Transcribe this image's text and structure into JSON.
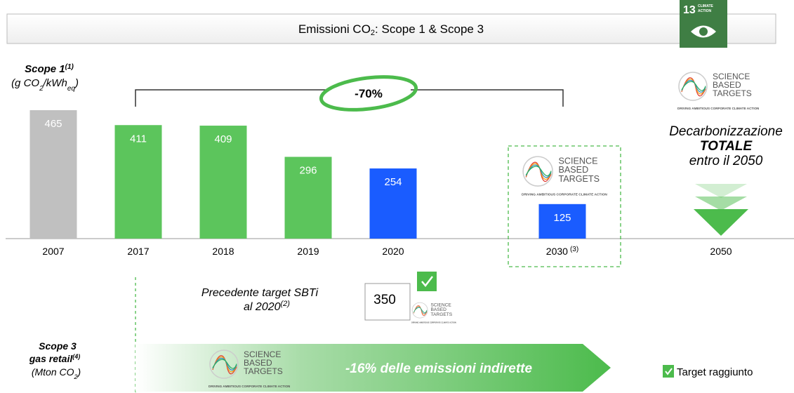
{
  "header": {
    "title_parts": [
      "Emissioni CO",
      "2",
      ": Scope 1 & Scope 3"
    ],
    "badge_number": "13",
    "badge_text": [
      "CLIMATE",
      "ACTION"
    ]
  },
  "chart_data": {
    "type": "bar",
    "categories": [
      "2007",
      "2017",
      "2018",
      "2019",
      "2020",
      "2030",
      "2050"
    ],
    "values": [
      465,
      411,
      409,
      296,
      254,
      125,
      null
    ],
    "colors": [
      "#c0c0c0",
      "#5cc55c",
      "#5cc55c",
      "#5cc55c",
      "#1a5cff",
      "#1a5cff",
      null
    ],
    "category_note": "(3)"
  },
  "scope1_label": [
    "Scope 1",
    "(1)",
    "(g CO",
    "2",
    "/kWh",
    "eq",
    ")"
  ],
  "reduction": "-70%",
  "sbt_logo": [
    "SCIENCE",
    "BASED",
    "TARGETS",
    "DRIVING AMBITIOUS CORPORATE CLIMATE ACTION"
  ],
  "right_text": [
    "Decarbonizzazione",
    "TOTALE",
    "entro il 2050"
  ],
  "previous_target": {
    "lines": [
      "Precedente target SBTi",
      "al 2020"
    ],
    "note": "(2)",
    "value": 350
  },
  "scope3_label": [
    "Scope 3",
    "gas retail",
    "(4)",
    "(Mton CO",
    "2",
    ")"
  ],
  "scope3_reduction": "-16% delle emissioni indirette",
  "legend": "Target raggiunto"
}
